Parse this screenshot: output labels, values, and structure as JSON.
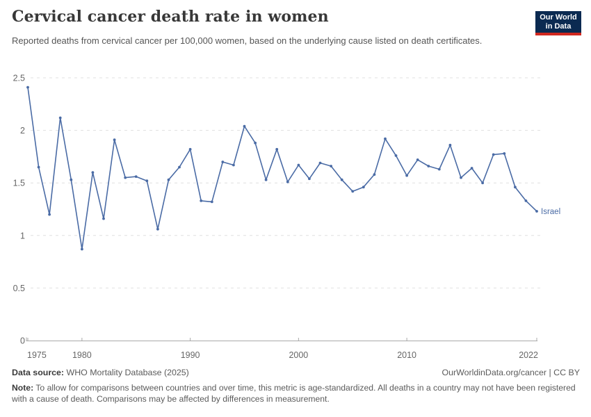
{
  "header": {
    "title": "Cervical cancer death rate in women",
    "subtitle": "Reported deaths from cervical cancer per 100,000 women, based on the underlying cause listed on death certificates.",
    "logo": {
      "line1": "Our World",
      "line2": "in Data",
      "bg_color": "#0b2a51",
      "accent_color": "#d0281f"
    }
  },
  "chart_data": {
    "type": "line",
    "title": "Cervical cancer death rate in women",
    "xlabel": "",
    "ylabel": "",
    "xlim": [
      1975,
      2022
    ],
    "ylim": [
      0,
      2.5
    ],
    "grid": "horizontal-dashed",
    "legend_position": "line-end-label",
    "yticks": [
      0,
      0.5,
      1,
      1.5,
      2,
      2.5
    ],
    "ytick_labels": [
      "0",
      "0.5",
      "1",
      "1.5",
      "2",
      "2.5"
    ],
    "xticks": [
      1975,
      1980,
      1990,
      2000,
      2010,
      2022
    ],
    "series": [
      {
        "name": "Israel",
        "color": "#4a6ba5",
        "x": [
          1975,
          1976,
          1977,
          1978,
          1979,
          1980,
          1981,
          1982,
          1983,
          1984,
          1985,
          1986,
          1987,
          1988,
          1989,
          1990,
          1991,
          1992,
          1993,
          1994,
          1995,
          1996,
          1997,
          1998,
          1999,
          2000,
          2001,
          2002,
          2003,
          2004,
          2005,
          2006,
          2007,
          2008,
          2009,
          2010,
          2011,
          2012,
          2013,
          2014,
          2015,
          2016,
          2017,
          2018,
          2019,
          2020,
          2021,
          2022
        ],
        "values": [
          2.41,
          1.65,
          1.2,
          2.12,
          1.53,
          0.87,
          1.6,
          1.16,
          1.91,
          1.55,
          1.56,
          1.52,
          1.06,
          1.53,
          1.65,
          1.82,
          1.33,
          1.32,
          1.7,
          1.67,
          2.04,
          1.88,
          1.53,
          1.82,
          1.51,
          1.67,
          1.54,
          1.69,
          1.66,
          1.53,
          1.42,
          1.46,
          1.58,
          1.92,
          1.76,
          1.57,
          1.72,
          1.66,
          1.63,
          1.86,
          1.55,
          1.64,
          1.5,
          1.77,
          1.78,
          1.46,
          1.33,
          1.23
        ]
      }
    ]
  },
  "footer": {
    "datasource_label": "Data source:",
    "datasource_value": " WHO Mortality Database (2025)",
    "link": "OurWorldinData.org/cancer | CC BY",
    "note_label": "Note:",
    "note_text": " To allow for comparisons between countries and over time, this metric is age-standardized. All deaths in a country may not have been registered with a cause of death. Comparisons may be affected by differences in measurement."
  }
}
